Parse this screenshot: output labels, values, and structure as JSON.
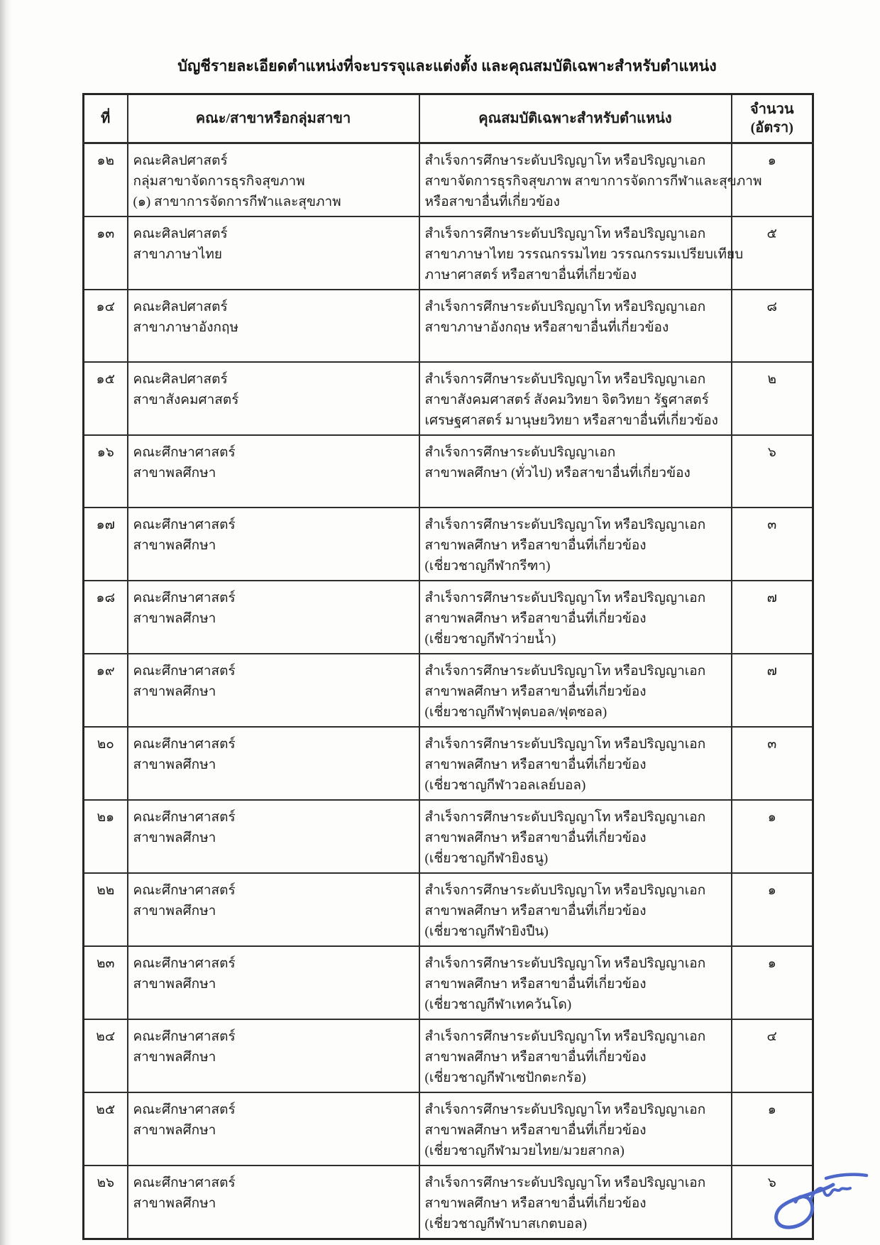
{
  "page": {
    "title": "บัญชีรายละเอียดตำแหน่งที่จะบรรจุและแต่งตั้ง และคุณสมบัติเฉพาะสำหรับตำแหน่ง"
  },
  "table": {
    "headers": {
      "no": "ที่",
      "faculty": "คณะ/สาขาหรือกลุ่มสาขา",
      "qualification": "คุณสมบัติเฉพาะสำหรับตำแหน่ง",
      "count_line1": "จำนวน",
      "count_line2": "(อัตรา)"
    },
    "rows": [
      {
        "no": "๑๒",
        "faculty_lines": [
          "คณะศิลปศาสตร์",
          "กลุ่มสาขาจัดการธุรกิจสุขภาพ",
          "(๑) สาขาการจัดการกีฬาและสุขภาพ"
        ],
        "qualification_lines": [
          "สำเร็จการศึกษาระดับปริญญาโท หรือปริญญาเอก",
          "สาขาจัดการธุรกิจสุขภาพ สาขาการจัดการกีฬาและสุขภาพ",
          "หรือสาขาอื่นที่เกี่ยวข้อง"
        ],
        "count": "๑"
      },
      {
        "no": "๑๓",
        "faculty_lines": [
          "คณะศิลปศาสตร์",
          "สาขาภาษาไทย"
        ],
        "qualification_lines": [
          "สำเร็จการศึกษาระดับปริญญาโท หรือปริญญาเอก",
          "สาขาภาษาไทย วรรณกรรมไทย วรรณกรรมเปรียบเทียบ",
          "ภาษาศาสตร์ หรือสาขาอื่นที่เกี่ยวข้อง"
        ],
        "count": "๕"
      },
      {
        "no": "๑๔",
        "faculty_lines": [
          "คณะศิลปศาสตร์",
          "สาขาภาษาอังกฤษ"
        ],
        "qualification_lines": [
          "สำเร็จการศึกษาระดับปริญญาโท หรือปริญญาเอก",
          "สาขาภาษาอังกฤษ หรือสาขาอื่นที่เกี่ยวข้อง"
        ],
        "count": "๘"
      },
      {
        "no": "๑๕",
        "faculty_lines": [
          "คณะศิลปศาสตร์",
          "สาขาสังคมศาสตร์"
        ],
        "qualification_lines": [
          "สำเร็จการศึกษาระดับปริญญาโท หรือปริญญาเอก",
          "สาขาสังคมศาสตร์ สังคมวิทยา จิตวิทยา รัฐศาสตร์",
          "เศรษฐศาสตร์ มานุษยวิทยา หรือสาขาอื่นที่เกี่ยวข้อง"
        ],
        "count": "๒"
      },
      {
        "no": "๑๖",
        "faculty_lines": [
          "คณะศึกษาศาสตร์",
          "สาขาพลศึกษา"
        ],
        "qualification_lines": [
          "สำเร็จการศึกษาระดับปริญญาเอก",
          "สาขาพลศึกษา (ทั่วไป) หรือสาขาอื่นที่เกี่ยวข้อง"
        ],
        "count": "๖"
      },
      {
        "no": "๑๗",
        "faculty_lines": [
          "คณะศึกษาศาสตร์",
          "สาขาพลศึกษา"
        ],
        "qualification_lines": [
          "สำเร็จการศึกษาระดับปริญญาโท หรือปริญญาเอก",
          "สาขาพลศึกษา หรือสาขาอื่นที่เกี่ยวข้อง",
          "(เชี่ยวชาญกีฬากรีฑา)"
        ],
        "count": "๓"
      },
      {
        "no": "๑๘",
        "faculty_lines": [
          "คณะศึกษาศาสตร์",
          "สาขาพลศึกษา"
        ],
        "qualification_lines": [
          "สำเร็จการศึกษาระดับปริญญาโท หรือปริญญาเอก",
          "สาขาพลศึกษา หรือสาขาอื่นที่เกี่ยวข้อง",
          "(เชี่ยวชาญกีฬาว่ายน้ำ)"
        ],
        "count": "๗"
      },
      {
        "no": "๑๙",
        "faculty_lines": [
          "คณะศึกษาศาสตร์",
          "สาขาพลศึกษา"
        ],
        "qualification_lines": [
          "สำเร็จการศึกษาระดับปริญญาโท หรือปริญญาเอก",
          "สาขาพลศึกษา หรือสาขาอื่นที่เกี่ยวข้อง",
          "(เชี่ยวชาญกีฬาฟุตบอล/ฟุตซอล)"
        ],
        "count": "๗"
      },
      {
        "no": "๒๐",
        "faculty_lines": [
          "คณะศึกษาศาสตร์",
          "สาขาพลศึกษา"
        ],
        "qualification_lines": [
          "สำเร็จการศึกษาระดับปริญญาโท หรือปริญญาเอก",
          "สาขาพลศึกษา หรือสาขาอื่นที่เกี่ยวข้อง",
          "(เชี่ยวชาญกีฬาวอลเลย์บอล)"
        ],
        "count": "๓"
      },
      {
        "no": "๒๑",
        "faculty_lines": [
          "คณะศึกษาศาสตร์",
          "สาขาพลศึกษา"
        ],
        "qualification_lines": [
          "สำเร็จการศึกษาระดับปริญญาโท หรือปริญญาเอก",
          "สาขาพลศึกษา หรือสาขาอื่นที่เกี่ยวข้อง",
          "(เชี่ยวชาญกีฬายิงธนู)"
        ],
        "count": "๑"
      },
      {
        "no": "๒๒",
        "faculty_lines": [
          "คณะศึกษาศาสตร์",
          "สาขาพลศึกษา"
        ],
        "qualification_lines": [
          "สำเร็จการศึกษาระดับปริญญาโท หรือปริญญาเอก",
          "สาขาพลศึกษา หรือสาขาอื่นที่เกี่ยวข้อง",
          "(เชี่ยวชาญกีฬายิงปืน)"
        ],
        "count": "๑"
      },
      {
        "no": "๒๓",
        "faculty_lines": [
          "คณะศึกษาศาสตร์",
          "สาขาพลศึกษา"
        ],
        "qualification_lines": [
          "สำเร็จการศึกษาระดับปริญญาโท หรือปริญญาเอก",
          "สาขาพลศึกษา หรือสาขาอื่นที่เกี่ยวข้อง",
          "(เชี่ยวชาญกีฬาเทควันโด)"
        ],
        "count": "๑"
      },
      {
        "no": "๒๔",
        "faculty_lines": [
          "คณะศึกษาศาสตร์",
          "สาขาพลศึกษา"
        ],
        "qualification_lines": [
          "สำเร็จการศึกษาระดับปริญญาโท หรือปริญญาเอก",
          "สาขาพลศึกษา หรือสาขาอื่นที่เกี่ยวข้อง",
          "(เชี่ยวชาญกีฬาเซปักตะกร้อ)"
        ],
        "count": "๔"
      },
      {
        "no": "๒๕",
        "faculty_lines": [
          "คณะศึกษาศาสตร์",
          "สาขาพลศึกษา"
        ],
        "qualification_lines": [
          "สำเร็จการศึกษาระดับปริญญาโท หรือปริญญาเอก",
          "สาขาพลศึกษา หรือสาขาอื่นที่เกี่ยวข้อง",
          "(เชี่ยวชาญกีฬามวยไทย/มวยสากล)"
        ],
        "count": "๑"
      },
      {
        "no": "๒๖",
        "faculty_lines": [
          "คณะศึกษาศาสตร์",
          "สาขาพลศึกษา"
        ],
        "qualification_lines": [
          "สำเร็จการศึกษาระดับปริญญาโท หรือปริญญาเอก",
          "สาขาพลศึกษา หรือสาขาอื่นที่เกี่ยวข้อง",
          "(เชี่ยวชาญกีฬาบาสเกตบอล)"
        ],
        "count": "๖"
      }
    ]
  },
  "signature": {
    "ink_color": "#4e68c9"
  }
}
